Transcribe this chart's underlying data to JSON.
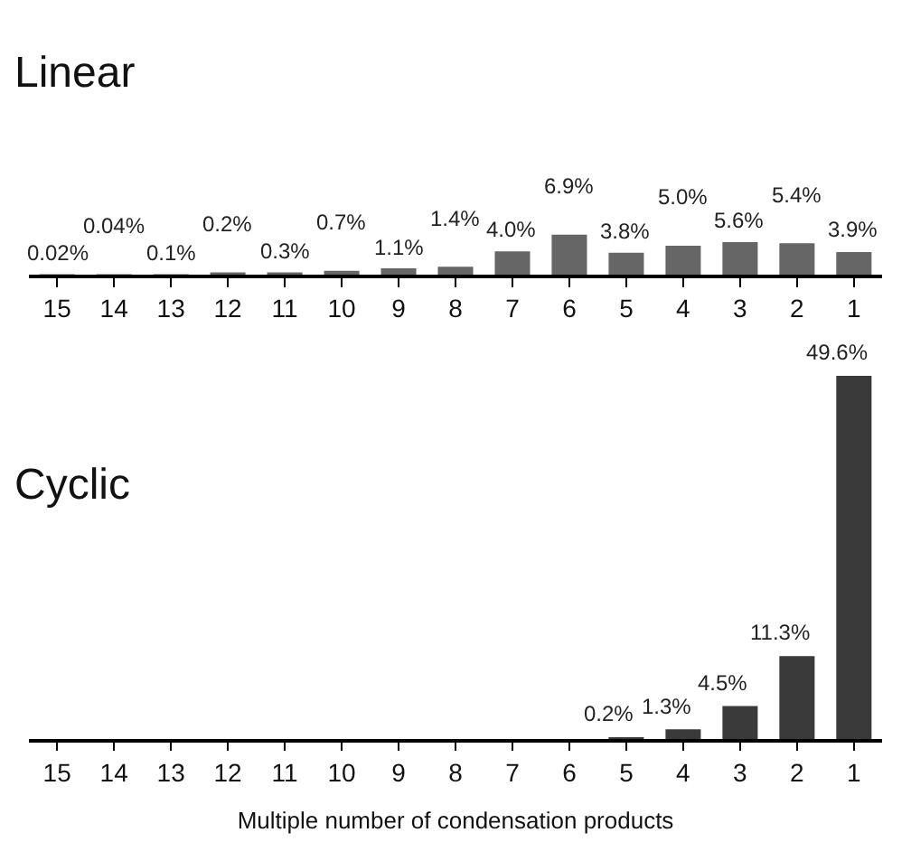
{
  "chart_data": [
    {
      "type": "bar",
      "title": "Linear",
      "categories": [
        "15",
        "14",
        "13",
        "12",
        "11",
        "10",
        "9",
        "8",
        "7",
        "6",
        "5",
        "4",
        "3",
        "2",
        "1"
      ],
      "values": [
        0.02,
        0.04,
        0.1,
        0.2,
        0.3,
        0.7,
        1.1,
        1.4,
        4.0,
        6.9,
        3.8,
        5.0,
        5.6,
        5.4,
        3.9
      ],
      "value_labels": [
        "0.02%",
        "0.04%",
        "0.1%",
        "0.2%",
        "0.3%",
        "0.7%",
        "1.1%",
        "1.4%",
        "4.0%",
        "6.9%",
        "3.8%",
        "5.0%",
        "5.6%",
        "5.4%",
        "3.9%"
      ],
      "color": "#666666"
    },
    {
      "type": "bar",
      "title": "Cyclic",
      "xlabel": "Multiple number of condensation products",
      "categories": [
        "15",
        "14",
        "13",
        "12",
        "11",
        "10",
        "9",
        "8",
        "7",
        "6",
        "5",
        "4",
        "3",
        "2",
        "1"
      ],
      "values": [
        null,
        null,
        null,
        null,
        null,
        null,
        null,
        null,
        null,
        null,
        0.2,
        1.3,
        4.5,
        11.3,
        49.6
      ],
      "value_labels": [
        null,
        null,
        null,
        null,
        null,
        null,
        null,
        null,
        null,
        null,
        "0.2%",
        "1.3%",
        "4.5%",
        "11.3%",
        "49.6%"
      ],
      "color": "#3a3a3a"
    }
  ]
}
